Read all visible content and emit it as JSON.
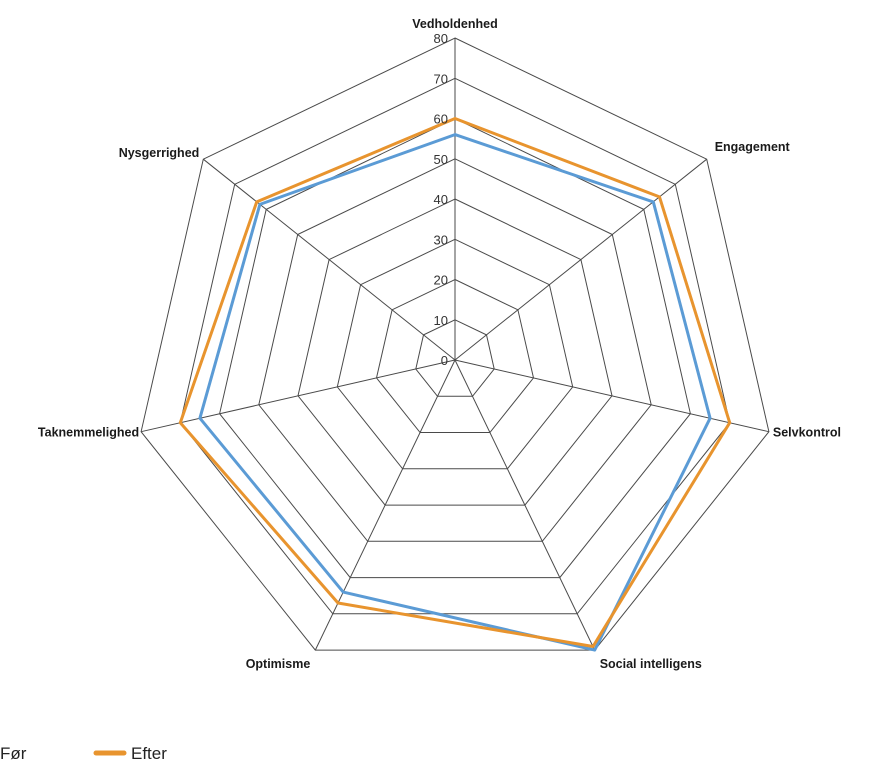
{
  "chart_data": {
    "type": "radar",
    "axes": [
      "Vedholdenhed",
      "Engagement",
      "Selvkontrol",
      "Social intelligens",
      "Optimisme",
      "Taknemmelighed",
      "Nysgerrighed"
    ],
    "ticks": [
      "0",
      "10",
      "20",
      "30",
      "40",
      "50",
      "60",
      "70",
      "80"
    ],
    "rmin": 0,
    "rmax": 80,
    "grid": true,
    "legend_position": "bottom-left",
    "series": [
      {
        "name": "Før",
        "color": "#5b9bd5",
        "values": [
          56,
          63,
          65,
          80,
          64,
          65,
          62
        ]
      },
      {
        "name": "Efter",
        "color": "#e8942e",
        "values": [
          60,
          65,
          70,
          79,
          67,
          70,
          63
        ]
      }
    ]
  }
}
